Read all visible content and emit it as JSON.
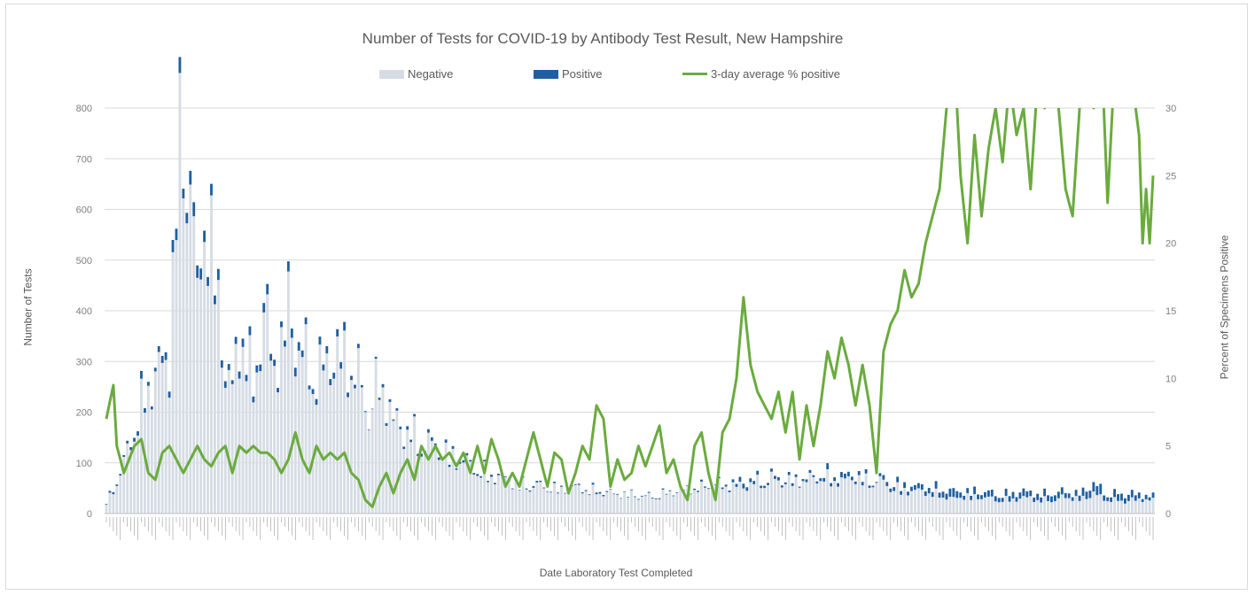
{
  "chart_data": {
    "type": "bar",
    "title": "Number of Tests for COVID-19 by Antibody Test Result, New Hampshire",
    "xlabel": "Date Laboratory Test Completed",
    "ylabel": "Number of Tests",
    "y2label": "Percent of Specimens Positive",
    "ylim": [
      0,
      800
    ],
    "y2lim": [
      0,
      30
    ],
    "yticks": [
      0,
      100,
      200,
      300,
      400,
      500,
      600,
      700,
      800
    ],
    "y2ticks": [
      0,
      5,
      10,
      15,
      20,
      25,
      30
    ],
    "grid": true,
    "legend_position": "top",
    "series": [
      {
        "name": "Negative",
        "kind": "bar",
        "color": "#d6dce4"
      },
      {
        "name": "Positive",
        "kind": "bar",
        "color": "#1f5fa0"
      },
      {
        "name": "3-day average % positive",
        "kind": "line",
        "color": "#6aab3e"
      }
    ],
    "colors": {
      "negative": "#d6dce4",
      "positive": "#1f5fa0",
      "line": "#6aab3e",
      "grid": "#d9d9d9"
    },
    "n_days": 300,
    "total_anchors": [
      [
        0,
        25
      ],
      [
        4,
        80
      ],
      [
        8,
        180
      ],
      [
        11,
        250
      ],
      [
        15,
        300
      ],
      [
        18,
        320
      ],
      [
        20,
        730
      ],
      [
        24,
        750
      ],
      [
        26,
        420
      ],
      [
        28,
        660
      ],
      [
        31,
        500
      ],
      [
        34,
        300
      ],
      [
        36,
        260
      ],
      [
        39,
        400
      ],
      [
        42,
        250
      ],
      [
        45,
        430
      ],
      [
        48,
        300
      ],
      [
        52,
        420
      ],
      [
        56,
        330
      ],
      [
        60,
        290
      ],
      [
        64,
        320
      ],
      [
        68,
        330
      ],
      [
        72,
        280
      ],
      [
        75,
        200
      ],
      [
        78,
        280
      ],
      [
        82,
        190
      ],
      [
        86,
        170
      ],
      [
        90,
        150
      ],
      [
        94,
        140
      ],
      [
        98,
        120
      ],
      [
        102,
        110
      ],
      [
        106,
        90
      ],
      [
        110,
        80
      ],
      [
        114,
        70
      ],
      [
        118,
        60
      ],
      [
        122,
        60
      ],
      [
        126,
        55
      ],
      [
        130,
        50
      ],
      [
        134,
        55
      ],
      [
        138,
        50
      ],
      [
        142,
        45
      ],
      [
        146,
        40
      ],
      [
        150,
        40
      ],
      [
        154,
        35
      ],
      [
        158,
        40
      ],
      [
        162,
        45
      ],
      [
        166,
        50
      ],
      [
        170,
        55
      ],
      [
        174,
        60
      ],
      [
        178,
        60
      ],
      [
        182,
        65
      ],
      [
        186,
        70
      ],
      [
        190,
        75
      ],
      [
        194,
        70
      ],
      [
        198,
        70
      ],
      [
        202,
        75
      ],
      [
        206,
        80
      ],
      [
        210,
        75
      ],
      [
        214,
        80
      ],
      [
        218,
        70
      ],
      [
        222,
        70
      ],
      [
        226,
        60
      ],
      [
        230,
        55
      ],
      [
        234,
        55
      ],
      [
        238,
        50
      ],
      [
        242,
        45
      ],
      [
        246,
        45
      ],
      [
        250,
        45
      ],
      [
        254,
        40
      ],
      [
        258,
        40
      ],
      [
        262,
        45
      ],
      [
        266,
        40
      ],
      [
        270,
        40
      ],
      [
        274,
        45
      ],
      [
        278,
        40
      ],
      [
        282,
        60
      ],
      [
        286,
        40
      ],
      [
        290,
        40
      ],
      [
        294,
        40
      ],
      [
        299,
        35
      ]
    ],
    "pct_line": [
      [
        0,
        7
      ],
      [
        2,
        9.5
      ],
      [
        3,
        5
      ],
      [
        5,
        3
      ],
      [
        8,
        5
      ],
      [
        10,
        5.5
      ],
      [
        12,
        3
      ],
      [
        14,
        2.5
      ],
      [
        16,
        4.5
      ],
      [
        18,
        5
      ],
      [
        20,
        4
      ],
      [
        22,
        3
      ],
      [
        24,
        4
      ],
      [
        26,
        5
      ],
      [
        28,
        4
      ],
      [
        30,
        3.5
      ],
      [
        32,
        4.5
      ],
      [
        34,
        5
      ],
      [
        36,
        3
      ],
      [
        38,
        5
      ],
      [
        40,
        4.5
      ],
      [
        42,
        5
      ],
      [
        44,
        4.5
      ],
      [
        46,
        4.5
      ],
      [
        48,
        4
      ],
      [
        50,
        3
      ],
      [
        52,
        4
      ],
      [
        54,
        6
      ],
      [
        56,
        4
      ],
      [
        58,
        3
      ],
      [
        60,
        5
      ],
      [
        62,
        4
      ],
      [
        64,
        4.5
      ],
      [
        66,
        4
      ],
      [
        68,
        4.5
      ],
      [
        70,
        3
      ],
      [
        72,
        2.5
      ],
      [
        74,
        1
      ],
      [
        76,
        0.5
      ],
      [
        78,
        2
      ],
      [
        80,
        3
      ],
      [
        82,
        1.5
      ],
      [
        84,
        3
      ],
      [
        86,
        4
      ],
      [
        88,
        2.5
      ],
      [
        90,
        5
      ],
      [
        92,
        4
      ],
      [
        94,
        5
      ],
      [
        96,
        4
      ],
      [
        98,
        4.5
      ],
      [
        100,
        3.5
      ],
      [
        102,
        4.5
      ],
      [
        104,
        3
      ],
      [
        106,
        5
      ],
      [
        108,
        3
      ],
      [
        110,
        5.5
      ],
      [
        112,
        4
      ],
      [
        114,
        2
      ],
      [
        116,
        3
      ],
      [
        118,
        2
      ],
      [
        120,
        4
      ],
      [
        122,
        6
      ],
      [
        124,
        4
      ],
      [
        126,
        2
      ],
      [
        128,
        4.5
      ],
      [
        130,
        4
      ],
      [
        132,
        1.5
      ],
      [
        134,
        3
      ],
      [
        136,
        5
      ],
      [
        138,
        4
      ],
      [
        140,
        8
      ],
      [
        142,
        7
      ],
      [
        144,
        2
      ],
      [
        146,
        4
      ],
      [
        148,
        2.5
      ],
      [
        150,
        3
      ],
      [
        152,
        5
      ],
      [
        154,
        3.5
      ],
      [
        156,
        5
      ],
      [
        158,
        6.5
      ],
      [
        160,
        3
      ],
      [
        162,
        4
      ],
      [
        164,
        2
      ],
      [
        166,
        1
      ],
      [
        168,
        5
      ],
      [
        170,
        6
      ],
      [
        172,
        3
      ],
      [
        174,
        1
      ],
      [
        176,
        6
      ],
      [
        178,
        7
      ],
      [
        180,
        10
      ],
      [
        182,
        16
      ],
      [
        184,
        11
      ],
      [
        186,
        9
      ],
      [
        188,
        8
      ],
      [
        190,
        7
      ],
      [
        192,
        9
      ],
      [
        194,
        6
      ],
      [
        196,
        9
      ],
      [
        198,
        4
      ],
      [
        200,
        8
      ],
      [
        202,
        5
      ],
      [
        204,
        8
      ],
      [
        206,
        12
      ],
      [
        208,
        10
      ],
      [
        210,
        13
      ],
      [
        212,
        11
      ],
      [
        214,
        8
      ],
      [
        216,
        11
      ],
      [
        218,
        8
      ],
      [
        220,
        3
      ],
      [
        222,
        12
      ],
      [
        224,
        14
      ],
      [
        226,
        15
      ],
      [
        228,
        18
      ],
      [
        230,
        16
      ],
      [
        232,
        17
      ],
      [
        234,
        20
      ],
      [
        236,
        22
      ],
      [
        238,
        24
      ],
      [
        240,
        30
      ],
      [
        242,
        35
      ],
      [
        244,
        25
      ],
      [
        246,
        20
      ],
      [
        248,
        28
      ],
      [
        250,
        22
      ],
      [
        252,
        27
      ],
      [
        254,
        30
      ],
      [
        256,
        26
      ],
      [
        258,
        32
      ],
      [
        260,
        28
      ],
      [
        262,
        30
      ],
      [
        264,
        24
      ],
      [
        266,
        32
      ],
      [
        268,
        30
      ],
      [
        270,
        34
      ],
      [
        272,
        30
      ],
      [
        274,
        24
      ],
      [
        276,
        22
      ],
      [
        278,
        30
      ],
      [
        280,
        34
      ],
      [
        282,
        30
      ],
      [
        284,
        36
      ],
      [
        286,
        23
      ],
      [
        288,
        33
      ],
      [
        290,
        40
      ],
      [
        292,
        33
      ],
      [
        294,
        30
      ],
      [
        295,
        28
      ],
      [
        296,
        20
      ],
      [
        297,
        24
      ],
      [
        298,
        20
      ],
      [
        299,
        25
      ]
    ]
  }
}
